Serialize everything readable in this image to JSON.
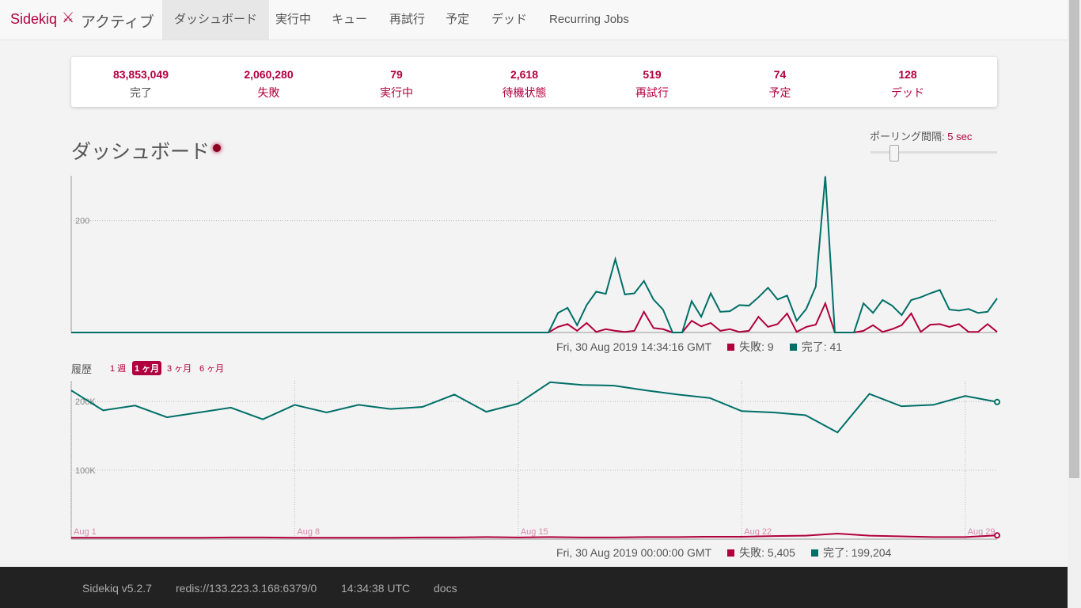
{
  "nav": {
    "brand": "Sidekiq",
    "status": "アクティブ",
    "items": [
      "ダッシュボード",
      "実行中",
      "キュー",
      "再試行",
      "予定",
      "デッド",
      "Recurring Jobs"
    ]
  },
  "stats": [
    {
      "value": "83,853,049",
      "label": "完了"
    },
    {
      "value": "2,060,280",
      "label": "失敗"
    },
    {
      "value": "79",
      "label": "実行中"
    },
    {
      "value": "2,618",
      "label": "待機状態"
    },
    {
      "value": "519",
      "label": "再試行"
    },
    {
      "value": "74",
      "label": "予定"
    },
    {
      "value": "128",
      "label": "デッド"
    }
  ],
  "dashboard": {
    "title": "ダッシュボード",
    "poll_label": "ポーリング間隔:",
    "poll_value": "5 sec",
    "history_label": "履歴",
    "ranges": [
      "1 週",
      "1 ヶ月",
      "3 ヶ月",
      "6 ヶ月"
    ]
  },
  "chart_data": [
    {
      "type": "line",
      "ylim": [
        0,
        280
      ],
      "yticks": [
        200
      ],
      "hover": {
        "time": "Fri, 30 Aug 2019 14:34:16 GMT",
        "items": [
          "失敗: 9",
          "完了: 41"
        ]
      },
      "series": [
        {
          "name": "失敗",
          "color": "#b1003e",
          "values": [
            0,
            0,
            0,
            0,
            0,
            0,
            0,
            0,
            0,
            0,
            0,
            0,
            0,
            0,
            0,
            0,
            0,
            0,
            0,
            0,
            0,
            0,
            0,
            0,
            0,
            0,
            0,
            0,
            0,
            0,
            0,
            0,
            0,
            0,
            0,
            0,
            0,
            0,
            0,
            0,
            0,
            0,
            0,
            0,
            0,
            0,
            0,
            0,
            0,
            0,
            0,
            10,
            15,
            3,
            17,
            1,
            6,
            3,
            1,
            3,
            37,
            8,
            6,
            0,
            0,
            21,
            11,
            17,
            3,
            6,
            1,
            3,
            28,
            10,
            15,
            34,
            1,
            10,
            14,
            52,
            0,
            0,
            0,
            3,
            13,
            1,
            6,
            13,
            34,
            1,
            14,
            15,
            10,
            15,
            1,
            1,
            15,
            1
          ]
        },
        {
          "name": "完了",
          "color": "#006f68",
          "values": [
            0,
            0,
            0,
            0,
            0,
            0,
            0,
            0,
            0,
            0,
            0,
            0,
            0,
            0,
            0,
            0,
            0,
            0,
            0,
            0,
            0,
            0,
            0,
            0,
            0,
            0,
            0,
            0,
            0,
            0,
            0,
            0,
            0,
            0,
            0,
            0,
            0,
            0,
            0,
            0,
            0,
            0,
            0,
            0,
            0,
            0,
            0,
            0,
            0,
            0,
            0,
            35,
            44,
            13,
            49,
            73,
            69,
            131,
            68,
            70,
            92,
            59,
            41,
            0,
            0,
            56,
            28,
            70,
            37,
            38,
            49,
            48,
            63,
            80,
            59,
            66,
            21,
            42,
            82,
            279,
            0,
            0,
            0,
            52,
            35,
            58,
            48,
            31,
            58,
            63,
            70,
            76,
            41,
            39,
            42,
            35,
            37,
            61
          ]
        }
      ]
    },
    {
      "type": "line",
      "ylim": [
        0,
        230000
      ],
      "yticks": [
        {
          "value": 100000,
          "label": "100K"
        },
        {
          "value": 200000,
          "label": "200K"
        }
      ],
      "categories": [
        "Aug 1",
        null,
        null,
        null,
        null,
        null,
        null,
        "Aug 8",
        null,
        null,
        null,
        null,
        null,
        null,
        "Aug 15",
        null,
        null,
        null,
        null,
        null,
        null,
        "Aug 22",
        null,
        null,
        null,
        null,
        null,
        null,
        "Aug 29",
        null
      ],
      "hover": {
        "time": "Fri, 30 Aug 2019 00:00:00 GMT",
        "items": [
          "失敗: 5,405",
          "完了: 199,204"
        ]
      },
      "series": [
        {
          "name": "失敗",
          "color": "#b1003e",
          "values": [
            2000,
            2000,
            2000,
            2000,
            2000,
            2500,
            2500,
            2000,
            2000,
            2000,
            2000,
            2500,
            2500,
            3000,
            2500,
            3000,
            2500,
            2500,
            3000,
            3000,
            3500,
            3500,
            4500,
            5000,
            8000,
            5000,
            4000,
            3000,
            3000,
            5405
          ]
        },
        {
          "name": "完了",
          "color": "#006f68",
          "values": [
            216000,
            187000,
            194000,
            177000,
            184000,
            191000,
            174000,
            195000,
            184000,
            195000,
            189000,
            192000,
            210000,
            185000,
            197000,
            228000,
            224000,
            223000,
            216000,
            210000,
            205000,
            186000,
            184000,
            180000,
            155000,
            211000,
            193000,
            195000,
            208000,
            199204
          ]
        }
      ]
    }
  ],
  "footer": [
    "Sidekiq v5.2.7",
    "redis://133.223.3.168:6379/0",
    "14:34:38 UTC",
    "docs"
  ]
}
